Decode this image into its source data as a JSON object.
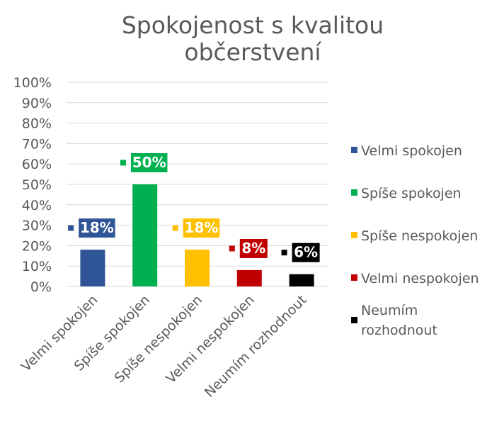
{
  "chart_data": {
    "type": "bar",
    "title_lines": [
      "Spokojenost s kvalitou",
      "občerstvení"
    ],
    "categories": [
      "Velmi spokojen",
      "Spíše spokojen",
      "Spíše nespokojen",
      "Velmi nespokojen",
      "Neumím rozhodnout"
    ],
    "values": [
      18,
      50,
      18,
      8,
      6
    ],
    "data_labels": [
      "18%",
      "50%",
      "18%",
      "8%",
      "6%"
    ],
    "colors": [
      "#2f5597",
      "#00b050",
      "#ffc000",
      "#c00000",
      "#000000"
    ],
    "ylim": [
      0,
      100
    ],
    "yticks": [
      "0%",
      "10%",
      "20%",
      "30%",
      "40%",
      "50%",
      "60%",
      "70%",
      "80%",
      "90%",
      "100%"
    ],
    "grid": true,
    "legend_position": "right",
    "legend": [
      {
        "label_lines": [
          "Velmi spokojen"
        ]
      },
      {
        "label_lines": [
          "Spíše spokojen"
        ]
      },
      {
        "label_lines": [
          "Spíše nespokojen"
        ]
      },
      {
        "label_lines": [
          "Velmi nespokojen"
        ]
      },
      {
        "label_lines": [
          "Neumím",
          "rozhodnout"
        ]
      }
    ],
    "xlabel": "",
    "ylabel": ""
  }
}
